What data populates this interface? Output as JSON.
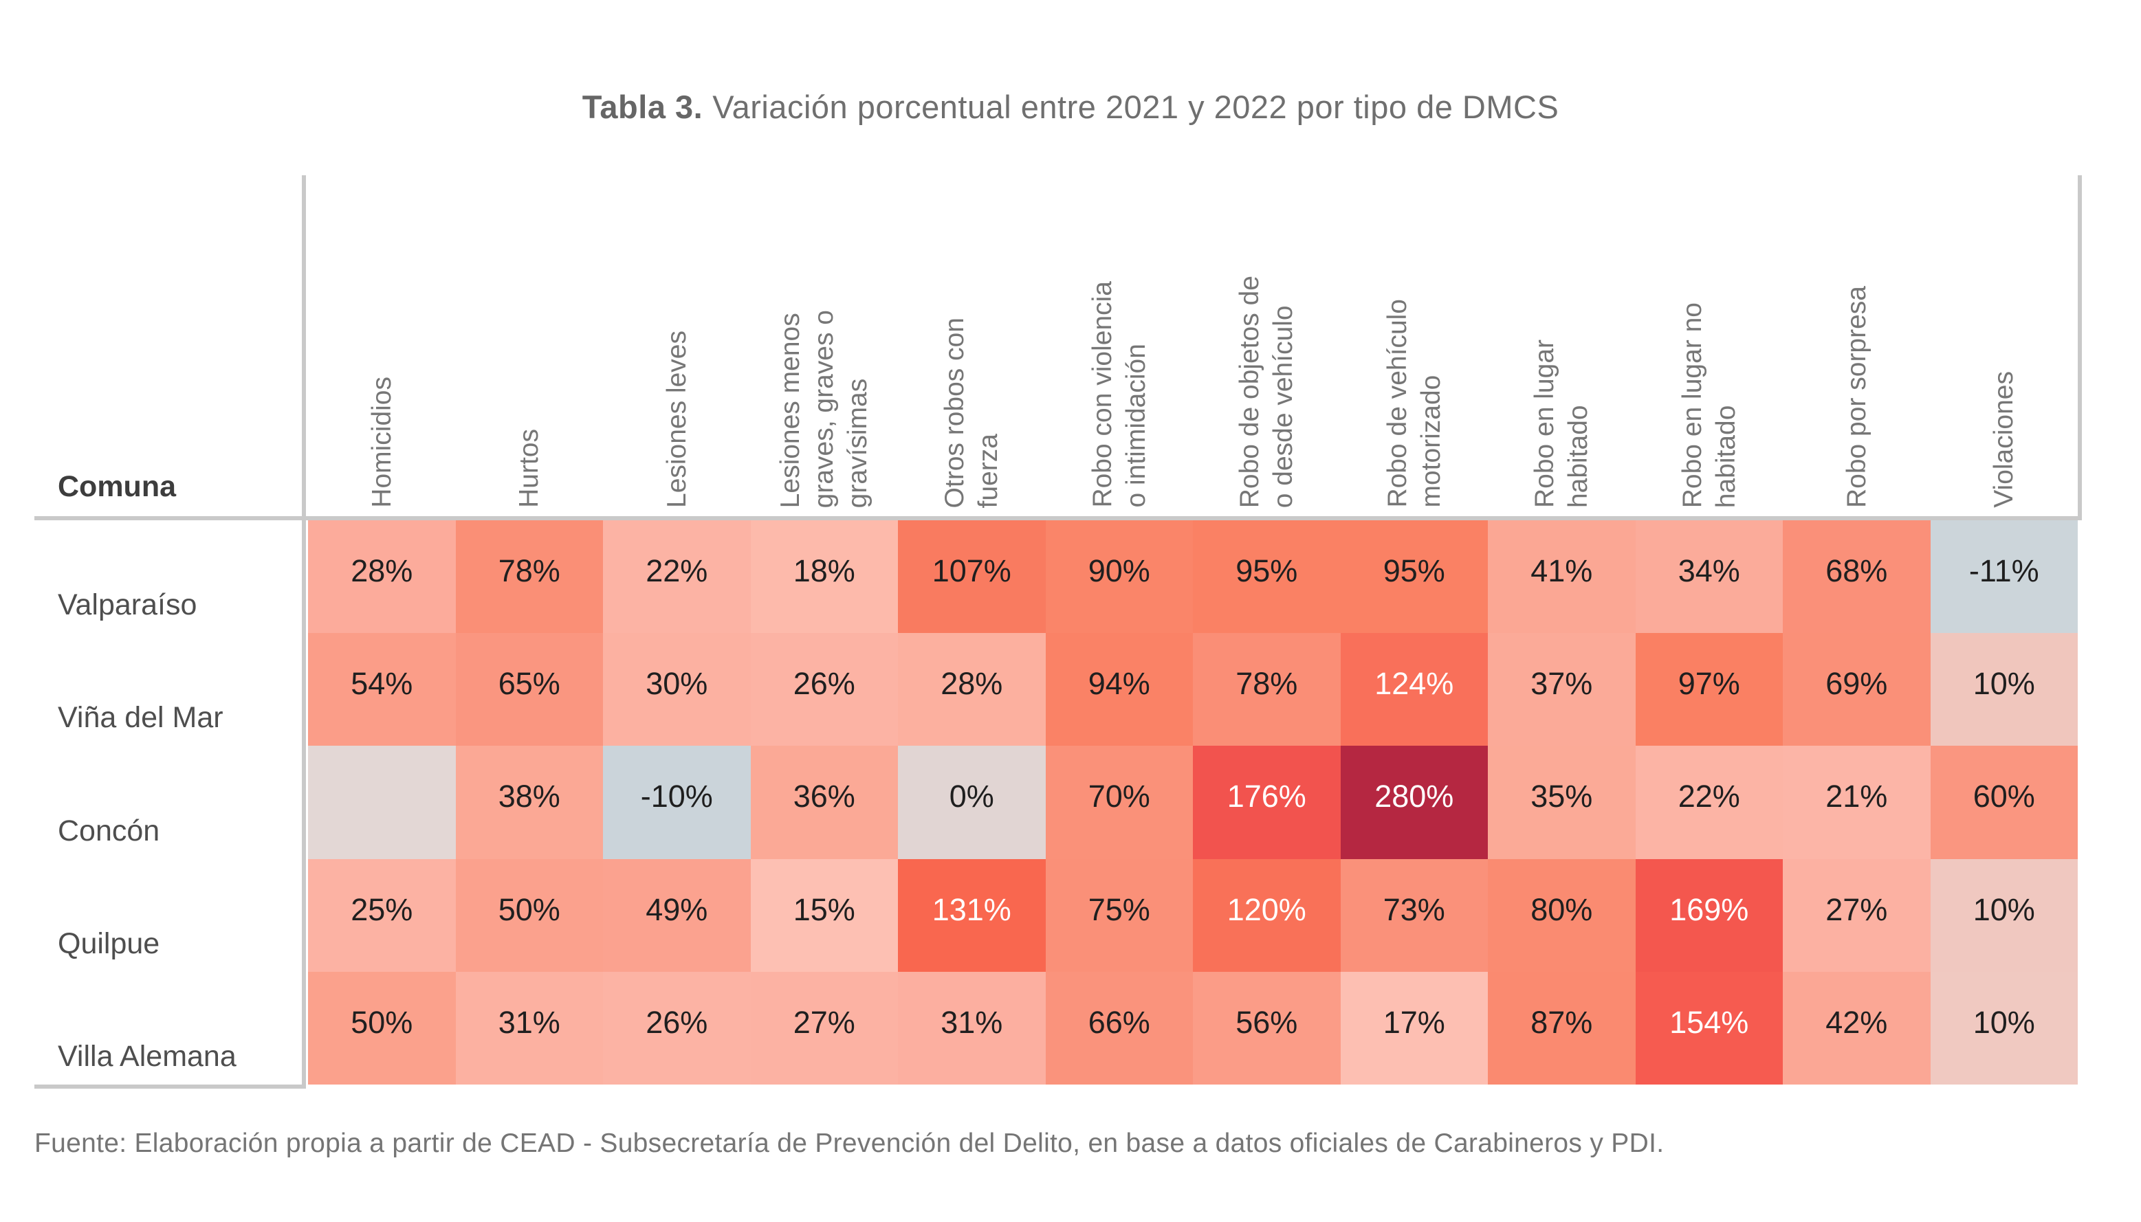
{
  "title": {
    "bold": "Tabla 3.",
    "rest": "Variación porcentual entre 2021 y 2022 por tipo de DMCS"
  },
  "corner_label": "Comuna",
  "source": "Fuente: Elaboración propia a partir de CEAD - Subsecretaría de Prevención del Delito, en base a datos oficiales de Carabineros y PDI.",
  "colors": {
    "title_text": "#6f6f6f",
    "header_text": "#767676",
    "corner_text": "#3d3d3d",
    "row_label_text": "#4e4e4e",
    "value_text": "#1f1f1f",
    "value_text_light": "#ffffff",
    "grid_line": "#c9c9c9",
    "negative_cell": "#ccd5da",
    "zero_cell": "#e1d5d3",
    "max_cell": "#b52741"
  },
  "chart_data": {
    "type": "heatmap",
    "title": "Tabla 3. Variación porcentual entre 2021 y 2022 por tipo de DMCS",
    "unit": "%",
    "rows": [
      "Valparaíso",
      "Viña del Mar",
      "Concón",
      "Quilpue",
      "Villa Alemana"
    ],
    "columns": [
      [
        "Homicidios"
      ],
      [
        "Hurtos"
      ],
      [
        "Lesiones leves"
      ],
      [
        "Lesiones menos",
        "graves, graves o",
        "gravísimas"
      ],
      [
        "Otros robos con",
        "fuerza"
      ],
      [
        "Robo con violencia",
        "o intimidación"
      ],
      [
        "Robo de objetos de",
        "o desde vehículo"
      ],
      [
        "Robo de vehículo",
        "motorizado"
      ],
      [
        "Robo en lugar",
        "habitado"
      ],
      [
        "Robo en lugar no",
        "habitado"
      ],
      [
        "Robo por sorpresa"
      ],
      [
        "Violaciones"
      ]
    ],
    "cells": [
      [
        {
          "v": "28%",
          "n": 28,
          "bg": "#fcab9b"
        },
        {
          "v": "78%",
          "n": 78,
          "bg": "#fa8f76"
        },
        {
          "v": "22%",
          "n": 22,
          "bg": "#fcb3a4"
        },
        {
          "v": "18%",
          "n": 18,
          "bg": "#fdbaab"
        },
        {
          "v": "107%",
          "n": 107,
          "bg": "#f97b60"
        },
        {
          "v": "90%",
          "n": 90,
          "bg": "#fa8569"
        },
        {
          "v": "95%",
          "n": 95,
          "bg": "#fa8164"
        },
        {
          "v": "95%",
          "n": 95,
          "bg": "#fa8164"
        },
        {
          "v": "41%",
          "n": 41,
          "bg": "#fba794"
        },
        {
          "v": "34%",
          "n": 34,
          "bg": "#fbab9a"
        },
        {
          "v": "68%",
          "n": 68,
          "bg": "#fa9079"
        },
        {
          "v": "-11%",
          "n": -11,
          "bg": "#ccd5da"
        }
      ],
      [
        {
          "v": "54%",
          "n": 54,
          "bg": "#fb9d88"
        },
        {
          "v": "65%",
          "n": 65,
          "bg": "#fa9680"
        },
        {
          "v": "30%",
          "n": 30,
          "bg": "#fcb1a1"
        },
        {
          "v": "26%",
          "n": 26,
          "bg": "#fcb3a4"
        },
        {
          "v": "28%",
          "n": 28,
          "bg": "#fcb09f"
        },
        {
          "v": "94%",
          "n": 94,
          "bg": "#fa8266"
        },
        {
          "v": "78%",
          "n": 78,
          "bg": "#fa8e76"
        },
        {
          "v": "124%",
          "n": 124,
          "bg": "#f9705a",
          "fg": "#ffffff"
        },
        {
          "v": "37%",
          "n": 37,
          "bg": "#fbaa98"
        },
        {
          "v": "97%",
          "n": 97,
          "bg": "#fa8063"
        },
        {
          "v": "69%",
          "n": 69,
          "bg": "#fa9078"
        },
        {
          "v": "10%",
          "n": 10,
          "bg": "#f0c6bd"
        }
      ],
      [
        {
          "v": "",
          "n": null,
          "bg": "#e3d7d5"
        },
        {
          "v": "38%",
          "n": 38,
          "bg": "#fba895"
        },
        {
          "v": "-10%",
          "n": -10,
          "bg": "#cbd4da"
        },
        {
          "v": "36%",
          "n": 36,
          "bg": "#fba996"
        },
        {
          "v": "0%",
          "n": 0,
          "bg": "#e1d5d3"
        },
        {
          "v": "70%",
          "n": 70,
          "bg": "#fa9179"
        },
        {
          "v": "176%",
          "n": 176,
          "bg": "#f2534e",
          "fg": "#ffffff"
        },
        {
          "v": "280%",
          "n": 280,
          "bg": "#b52741",
          "fg": "#ffffff"
        },
        {
          "v": "35%",
          "n": 35,
          "bg": "#fbaa97"
        },
        {
          "v": "22%",
          "n": 22,
          "bg": "#fcb4a5"
        },
        {
          "v": "21%",
          "n": 21,
          "bg": "#fcb5a7"
        },
        {
          "v": "60%",
          "n": 60,
          "bg": "#fa9680"
        }
      ],
      [
        {
          "v": "25%",
          "n": 25,
          "bg": "#fcb2a3"
        },
        {
          "v": "50%",
          "n": 50,
          "bg": "#fba18d"
        },
        {
          "v": "49%",
          "n": 49,
          "bg": "#fba28f"
        },
        {
          "v": "15%",
          "n": 15,
          "bg": "#fdc0b3"
        },
        {
          "v": "131%",
          "n": 131,
          "bg": "#f9674f",
          "fg": "#ffffff"
        },
        {
          "v": "75%",
          "n": 75,
          "bg": "#fa9078"
        },
        {
          "v": "120%",
          "n": 120,
          "bg": "#f97158",
          "fg": "#ffffff"
        },
        {
          "v": "73%",
          "n": 73,
          "bg": "#fa917a"
        },
        {
          "v": "80%",
          "n": 80,
          "bg": "#fa8b71"
        },
        {
          "v": "169%",
          "n": 169,
          "bg": "#f4574e",
          "fg": "#ffffff"
        },
        {
          "v": "27%",
          "n": 27,
          "bg": "#fcb1a2"
        },
        {
          "v": "10%",
          "n": 10,
          "bg": "#f0c8c0"
        }
      ],
      [
        {
          "v": "50%",
          "n": 50,
          "bg": "#fba18c"
        },
        {
          "v": "31%",
          "n": 31,
          "bg": "#fcb1a1"
        },
        {
          "v": "26%",
          "n": 26,
          "bg": "#fcb3a4"
        },
        {
          "v": "27%",
          "n": 27,
          "bg": "#fcb2a3"
        },
        {
          "v": "31%",
          "n": 31,
          "bg": "#fcafa0"
        },
        {
          "v": "66%",
          "n": 66,
          "bg": "#fa937c"
        },
        {
          "v": "56%",
          "n": 56,
          "bg": "#fb9c87"
        },
        {
          "v": "17%",
          "n": 17,
          "bg": "#fdbfb2"
        },
        {
          "v": "87%",
          "n": 87,
          "bg": "#fa8a70"
        },
        {
          "v": "154%",
          "n": 154,
          "bg": "#f65b50",
          "fg": "#ffffff"
        },
        {
          "v": "42%",
          "n": 42,
          "bg": "#fba795"
        },
        {
          "v": "10%",
          "n": 10,
          "bg": "#f0c9c1"
        }
      ]
    ]
  }
}
